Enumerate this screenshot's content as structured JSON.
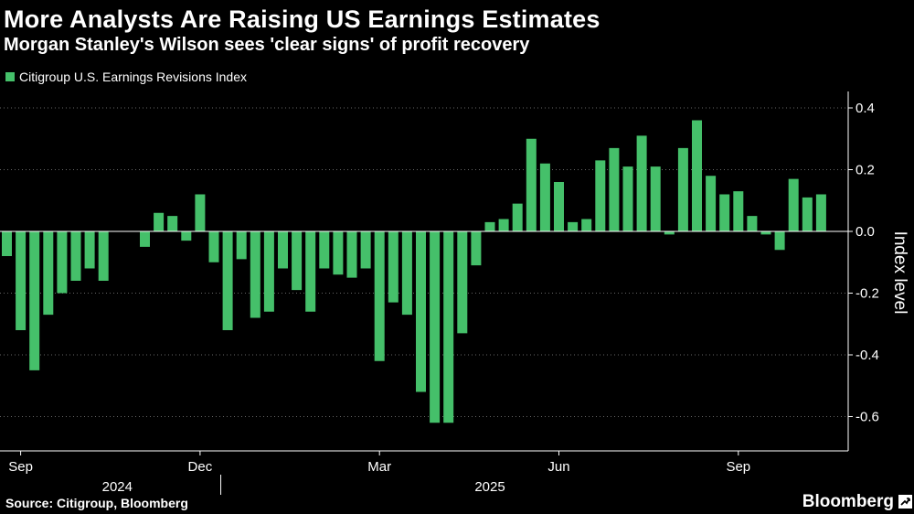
{
  "title": "More Analysts Are Raising US Earnings Estimates",
  "subtitle": "Morgan Stanley's Wilson sees 'clear signs' of profit recovery",
  "source": "Source: Citigroup, Bloomberg",
  "brand": "Bloomberg",
  "brand_icon": "bloomberg-logo-icon",
  "colors": {
    "bar": "#45c06a",
    "background": "#000000",
    "grid": "#666666",
    "axis": "#ffffff"
  },
  "chart_data": {
    "type": "bar",
    "title": "More Analysts Are Raising US Earnings Estimates",
    "legend": [
      {
        "name": "Citigroup U.S. Earnings Revisions Index",
        "color": "#45c06a"
      }
    ],
    "legend_position": "top-left",
    "ylabel": "Index level",
    "y_axis_side": "right",
    "ylim": [
      -0.7,
      0.45
    ],
    "yticks": [
      -0.6,
      -0.4,
      -0.2,
      0.0,
      0.2,
      0.4
    ],
    "ytick_labels": [
      "-0.6",
      "-0.4",
      "-0.2",
      "0.0",
      "0.2",
      "0.4"
    ],
    "grid": "horizontal dotted",
    "x_month_labels": [
      {
        "label": "Sep",
        "bar_index": 1
      },
      {
        "label": "Dec",
        "bar_index": 14
      },
      {
        "label": "Mar",
        "bar_index": 27
      },
      {
        "label": "Jun",
        "bar_index": 40
      },
      {
        "label": "Sep",
        "bar_index": 53
      }
    ],
    "x_year_labels": [
      {
        "label": "2024",
        "bar_index": 8
      },
      {
        "label": "2025",
        "bar_index": 35
      }
    ],
    "series": [
      {
        "name": "Citigroup U.S. Earnings Revisions Index",
        "values": [
          -0.08,
          -0.32,
          -0.45,
          -0.27,
          -0.2,
          -0.16,
          -0.12,
          -0.16,
          0.0,
          0.0,
          -0.05,
          0.06,
          0.05,
          -0.03,
          0.12,
          -0.1,
          -0.32,
          -0.09,
          -0.28,
          -0.26,
          -0.12,
          -0.19,
          -0.26,
          -0.12,
          -0.14,
          -0.15,
          -0.12,
          -0.42,
          -0.23,
          -0.27,
          -0.52,
          -0.62,
          -0.62,
          -0.33,
          -0.11,
          0.03,
          0.04,
          0.09,
          0.3,
          0.22,
          0.16,
          0.03,
          0.04,
          0.23,
          0.27,
          0.21,
          0.31,
          0.21,
          -0.01,
          0.27,
          0.36,
          0.18,
          0.12,
          0.13,
          0.05,
          -0.01,
          -0.06,
          0.17,
          0.11,
          0.12
        ]
      }
    ]
  }
}
